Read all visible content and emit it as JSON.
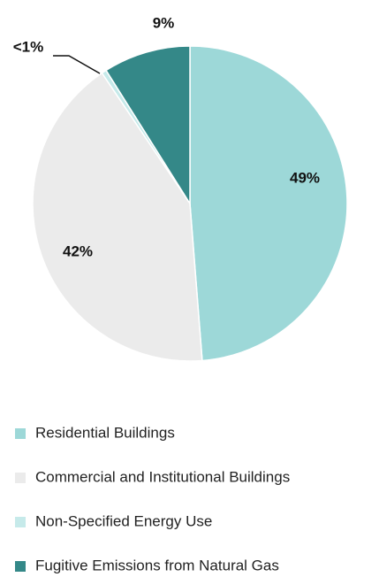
{
  "chart_data": {
    "type": "pie",
    "categories": [
      "Residential Buildings",
      "Commercial and Institutional Buildings",
      "Non-Specified Energy Use",
      "Fugitive Emissions from Natural Gas"
    ],
    "values": [
      49,
      42,
      0.5,
      9
    ],
    "value_labels": [
      "49%",
      "42%",
      "<1%",
      "9%"
    ],
    "colors": [
      "#9dd8d8",
      "#ebebeb",
      "#c6eaea",
      "#348888"
    ]
  }
}
